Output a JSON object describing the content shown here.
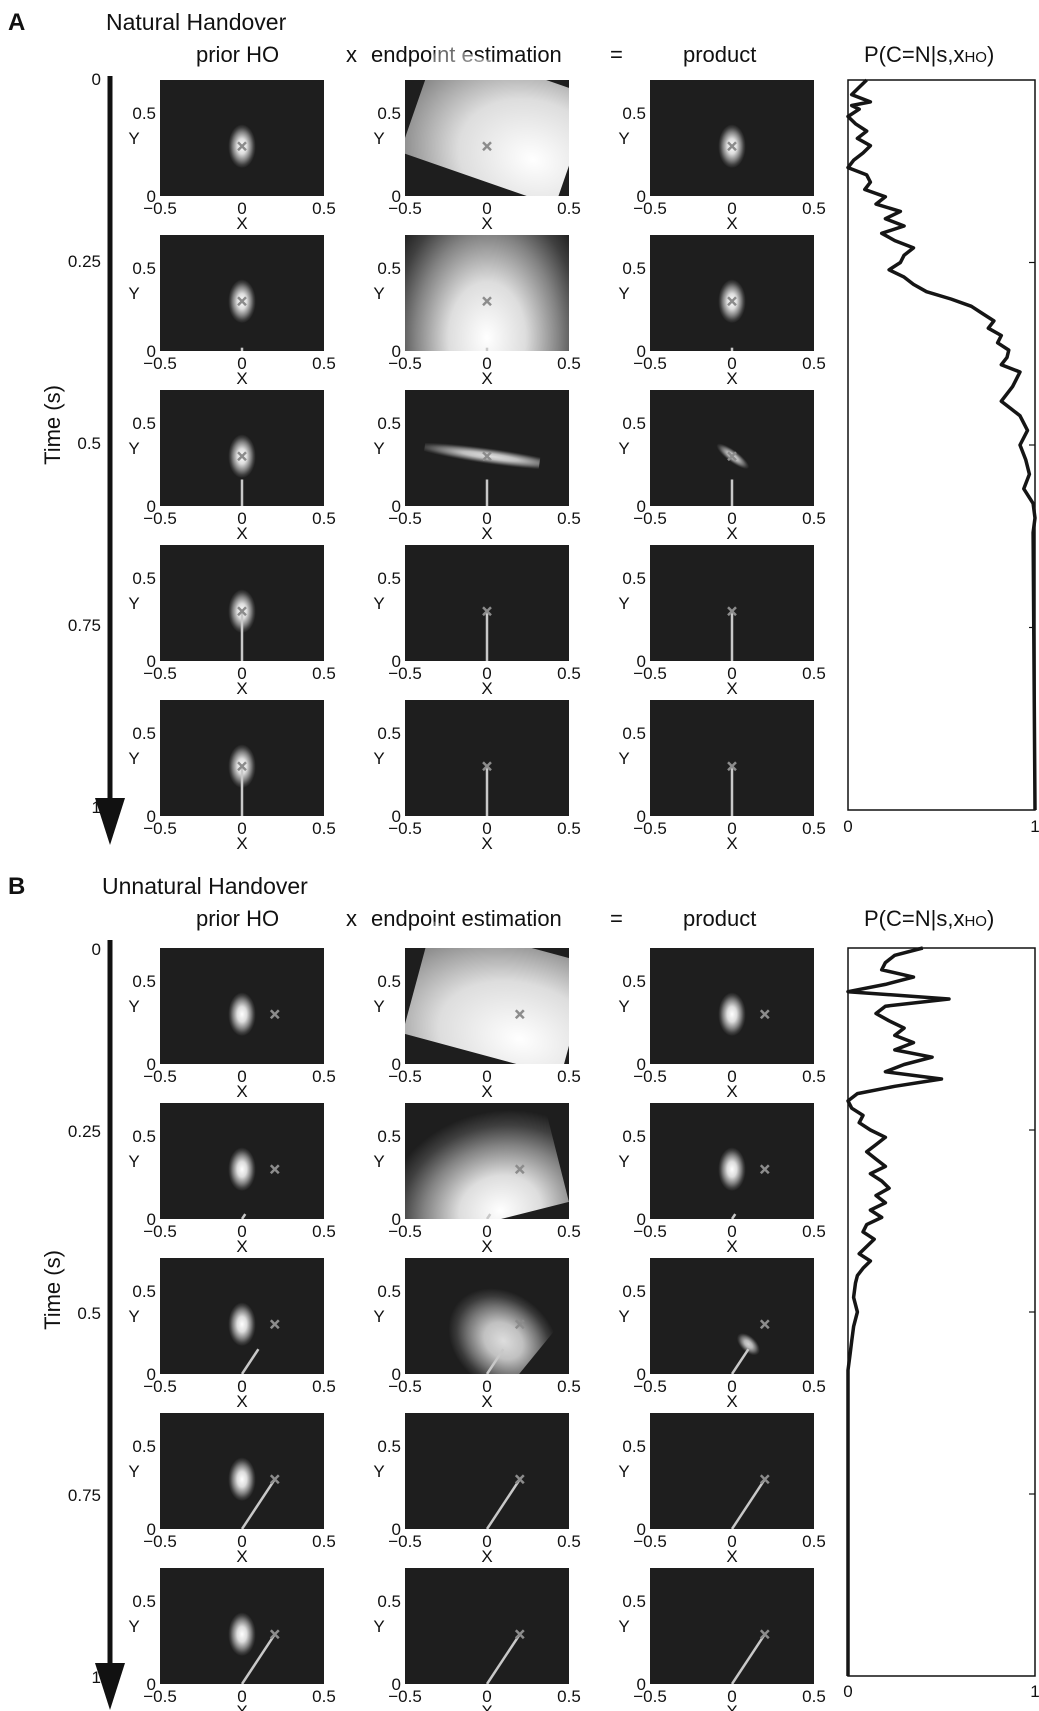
{
  "colors": {
    "background": "#ffffff",
    "axes_bg": "#1e1e1e",
    "ink": "#111111",
    "marker": "#8c8c8c",
    "trajectory": "#c8c8c8",
    "curve": "#151515"
  },
  "column_headers": {
    "prior": "prior HO",
    "times": "x",
    "endpoint": "endpoint estimation",
    "equals": "=",
    "product": "product",
    "prob_main": "P(C=N|s,x",
    "prob_sub": "HO",
    "prob_close": ")"
  },
  "time_axis": {
    "label": "Time (s)",
    "ticks": [
      "0",
      "0.25",
      "0.5",
      "0.75",
      "1"
    ]
  },
  "subplot_axes": {
    "xlabel": "X",
    "ylabel": "Y",
    "x_ticks": [
      "−0.5",
      "0",
      "0.5"
    ],
    "y_ticks": [
      "0",
      "0.5"
    ],
    "xlim": [
      -0.5,
      0.5
    ],
    "ylim": [
      0,
      0.7
    ]
  },
  "prob_axis": {
    "ticks": [
      "0",
      "1"
    ],
    "xlim": [
      0,
      1
    ],
    "ylim": [
      0,
      1
    ]
  },
  "panels": [
    {
      "letter": "A",
      "title": "Natural Handover",
      "target": [
        0,
        0.3
      ],
      "times": [
        0,
        0.25,
        0.5,
        0.75,
        1
      ],
      "prior": {
        "mean": [
          0,
          0.3
        ],
        "sd": [
          0.035,
          0.055
        ]
      },
      "trajectory_end": [
        [
          0,
          0
        ],
        [
          0,
          0.02
        ],
        [
          0,
          0.16
        ],
        [
          0,
          0.3
        ],
        [
          0,
          0.3
        ]
      ],
      "endpoint": [
        {
          "mean": [
            0.28,
            0.22
          ],
          "sd": [
            0.55,
            0.42
          ],
          "rho": -0.45,
          "alpha": 1.0
        },
        {
          "mean": [
            0.0,
            0.08
          ],
          "sd": [
            0.28,
            0.4
          ],
          "rho": 0.0,
          "alpha": 1.0
        },
        {
          "mean": [
            0.02,
            0.3
          ],
          "sd": [
            0.02,
            0.2
          ],
          "rho": 0.7,
          "alpha": 0.85
        },
        null,
        null
      ],
      "product": [
        {
          "mean": [
            0,
            0.3
          ],
          "sd": [
            0.035,
            0.055
          ],
          "rho": 0,
          "alpha": 1.0
        },
        {
          "mean": [
            0,
            0.3
          ],
          "sd": [
            0.035,
            0.055
          ],
          "rho": 0,
          "alpha": 1.0
        },
        {
          "mean": [
            0.005,
            0.3
          ],
          "sd": [
            0.015,
            0.05
          ],
          "rho": 0.4,
          "alpha": 0.8
        },
        null,
        null
      ]
    },
    {
      "letter": "B",
      "title": "Unnatural Handover",
      "target": [
        0.2,
        0.3
      ],
      "times": [
        0,
        0.25,
        0.5,
        0.75,
        1
      ],
      "prior": {
        "mean": [
          0,
          0.3
        ],
        "sd": [
          0.035,
          0.055
        ]
      },
      "trajectory_end": [
        [
          0,
          0
        ],
        [
          0.02,
          0.03
        ],
        [
          0.1,
          0.15
        ],
        [
          0.2,
          0.3
        ],
        [
          0.2,
          0.3
        ]
      ],
      "endpoint": [
        {
          "mean": [
            0.2,
            0.15
          ],
          "sd": [
            0.6,
            0.4
          ],
          "rho": -0.4,
          "alpha": 1.0
        },
        {
          "mean": [
            0.08,
            0.05
          ],
          "sd": [
            0.3,
            0.25
          ],
          "rho": 0.3,
          "alpha": 1.0
        },
        {
          "mean": [
            0.1,
            0.2
          ],
          "sd": [
            0.12,
            0.15
          ],
          "rho": 0.97,
          "alpha": 0.85
        },
        null,
        null
      ],
      "product": [
        {
          "mean": [
            0,
            0.3
          ],
          "sd": [
            0.035,
            0.055
          ],
          "rho": 0,
          "alpha": 1.0
        },
        {
          "mean": [
            0,
            0.3
          ],
          "sd": [
            0.035,
            0.055
          ],
          "rho": 0,
          "alpha": 1.0
        },
        {
          "mean": [
            0.1,
            0.18
          ],
          "sd": [
            0.02,
            0.035
          ],
          "rho": 0.6,
          "alpha": 0.8
        },
        null,
        null
      ]
    }
  ],
  "chart_data": [
    {
      "type": "line",
      "panel": "A",
      "ylabel": "Time (s)",
      "xlim": [
        0,
        1
      ],
      "ylim": [
        0,
        1
      ],
      "series": [
        {
          "name": "P(C=N|s,xHO)",
          "t": [
            0,
            0.01,
            0.02,
            0.03,
            0.035,
            0.04,
            0.05,
            0.06,
            0.07,
            0.08,
            0.09,
            0.1,
            0.11,
            0.12,
            0.13,
            0.14,
            0.15,
            0.16,
            0.17,
            0.18,
            0.19,
            0.2,
            0.21,
            0.22,
            0.23,
            0.24,
            0.25,
            0.26,
            0.27,
            0.28,
            0.29,
            0.3,
            0.31,
            0.32,
            0.33,
            0.34,
            0.35,
            0.36,
            0.37,
            0.38,
            0.39,
            0.4,
            0.42,
            0.44,
            0.45,
            0.46,
            0.48,
            0.5,
            0.52,
            0.54,
            0.56,
            0.58,
            0.6,
            0.62,
            1.0
          ],
          "p": [
            0.1,
            0.06,
            0.02,
            0.12,
            0.02,
            0.06,
            0.0,
            0.04,
            0.1,
            0.05,
            0.12,
            0.08,
            0.03,
            0.0,
            0.1,
            0.12,
            0.09,
            0.2,
            0.15,
            0.28,
            0.2,
            0.3,
            0.18,
            0.25,
            0.35,
            0.3,
            0.28,
            0.22,
            0.3,
            0.35,
            0.42,
            0.55,
            0.66,
            0.72,
            0.78,
            0.75,
            0.82,
            0.8,
            0.86,
            0.85,
            0.82,
            0.92,
            0.88,
            0.82,
            0.87,
            0.92,
            0.96,
            0.92,
            0.95,
            0.97,
            0.94,
            0.99,
            1.0,
            0.99,
            1.0
          ]
        }
      ]
    },
    {
      "type": "line",
      "panel": "B",
      "ylabel": "Time (s)",
      "xlim": [
        0,
        1
      ],
      "ylim": [
        0,
        1
      ],
      "series": [
        {
          "name": "P(C=N|s,xHO)",
          "t": [
            0,
            0.01,
            0.02,
            0.03,
            0.04,
            0.05,
            0.06,
            0.07,
            0.08,
            0.09,
            0.1,
            0.11,
            0.12,
            0.13,
            0.14,
            0.15,
            0.16,
            0.17,
            0.18,
            0.19,
            0.2,
            0.21,
            0.22,
            0.23,
            0.24,
            0.25,
            0.26,
            0.27,
            0.28,
            0.29,
            0.3,
            0.31,
            0.32,
            0.33,
            0.34,
            0.35,
            0.36,
            0.37,
            0.38,
            0.39,
            0.4,
            0.41,
            0.42,
            0.43,
            0.44,
            0.45,
            0.46,
            0.48,
            0.5,
            0.52,
            0.54,
            0.56,
            0.58,
            1.0
          ],
          "p": [
            0.4,
            0.25,
            0.2,
            0.18,
            0.35,
            0.2,
            0.0,
            0.54,
            0.2,
            0.15,
            0.22,
            0.3,
            0.25,
            0.35,
            0.25,
            0.45,
            0.3,
            0.2,
            0.5,
            0.25,
            0.05,
            0.0,
            0.02,
            0.08,
            0.06,
            0.12,
            0.2,
            0.15,
            0.1,
            0.15,
            0.2,
            0.12,
            0.18,
            0.22,
            0.15,
            0.2,
            0.12,
            0.18,
            0.1,
            0.08,
            0.14,
            0.1,
            0.06,
            0.12,
            0.08,
            0.05,
            0.04,
            0.03,
            0.05,
            0.03,
            0.02,
            0.01,
            0.0,
            0.0
          ]
        }
      ]
    }
  ]
}
